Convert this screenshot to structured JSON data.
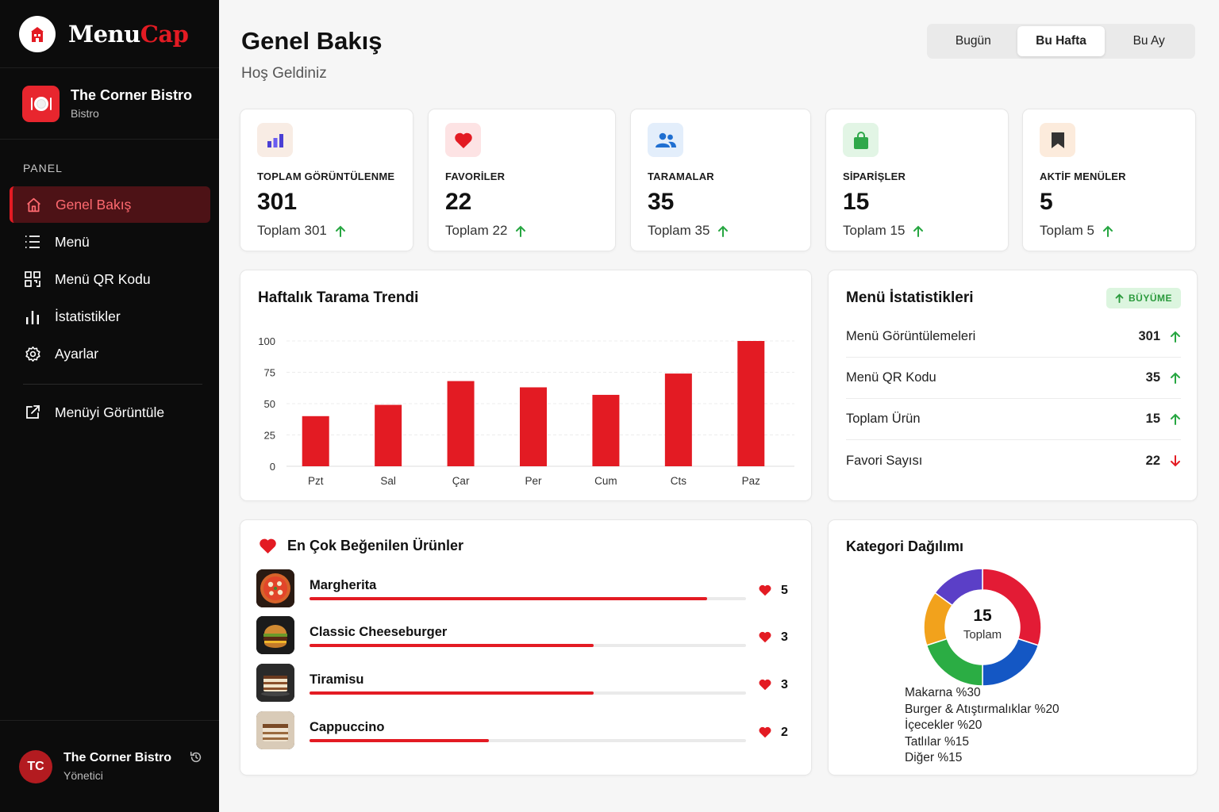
{
  "brand": {
    "logo_main": "Menu",
    "logo_accent": "Cap"
  },
  "business": {
    "name": "The Corner Bistro",
    "type": "Bistro"
  },
  "sidebar": {
    "section_label": "PANEL",
    "items": [
      {
        "label": "Genel Bakış",
        "icon": "home-icon",
        "active": true
      },
      {
        "label": "Menü",
        "icon": "list-icon"
      },
      {
        "label": "Menü QR Kodu",
        "icon": "qr-code-icon"
      },
      {
        "label": "İstatistikler",
        "icon": "bar-chart-icon"
      },
      {
        "label": "Ayarlar",
        "icon": "gear-icon"
      }
    ],
    "external": {
      "label": "Menüyi Görüntüle",
      "icon": "external-link-icon"
    }
  },
  "user": {
    "initials": "TC",
    "name": "The Corner Bistro",
    "role": "Yönetici"
  },
  "header": {
    "title": "Genel Bakış",
    "subtitle": "Hoş Geldiniz"
  },
  "period": {
    "options": [
      "Bugün",
      "Bu Hafta",
      "Bu Ay"
    ],
    "selected": "Bu Hafta"
  },
  "stats": [
    {
      "label": "TOPLAM GÖRÜNTÜLENME",
      "value": "301",
      "total": "Toplam 301",
      "icon": "bar-chart-icon",
      "color": "#4a3fd4",
      "bg": "#f8ece4"
    },
    {
      "label": "FAVORİLER",
      "value": "22",
      "total": "Toplam 22",
      "icon": "heart-icon",
      "color": "#e31b23",
      "bg": "#fde3e4"
    },
    {
      "label": "TARAMALAR",
      "value": "35",
      "total": "Toplam 35",
      "icon": "users-icon",
      "color": "#1f6fd1",
      "bg": "#e3eefb"
    },
    {
      "label": "SİPARİŞLER",
      "value": "15",
      "total": "Toplam 15",
      "icon": "shopping-bag-icon",
      "color": "#2fa84a",
      "bg": "#e2f5e5"
    },
    {
      "label": "AKTİF MENÜLER",
      "value": "5",
      "total": "Toplam 5",
      "icon": "bookmark-icon",
      "color": "#333333",
      "bg": "#fcebdc"
    }
  ],
  "weekly": {
    "title": "Haftalık Tarama Trendi",
    "chart_data": {
      "type": "bar",
      "categories": [
        "Pzt",
        "Sal",
        "Çar",
        "Per",
        "Cum",
        "Cts",
        "Paz"
      ],
      "values": [
        40,
        49,
        68,
        63,
        57,
        74,
        100
      ],
      "ylim": [
        0,
        100
      ],
      "yticks": [
        0,
        25,
        50,
        75,
        100
      ],
      "grid": true,
      "color": "#e31b23"
    }
  },
  "menu_stats": {
    "title": "Menü İstatistikleri",
    "badge": "BÜYÜME",
    "rows": [
      {
        "label": "Menü Görüntülemeleri",
        "value": "301",
        "trend": "up"
      },
      {
        "label": "Menü QR Kodu",
        "value": "35",
        "trend": "up"
      },
      {
        "label": "Toplam Ürün",
        "value": "15",
        "trend": "up"
      },
      {
        "label": "Favori Sayısı",
        "value": "22",
        "trend": "down"
      }
    ]
  },
  "top_liked": {
    "title": "En Çok Beğenilen Ürünler",
    "items": [
      {
        "name": "Margherita",
        "count": "5",
        "progress": 0.91
      },
      {
        "name": "Classic Cheeseburger",
        "count": "3",
        "progress": 0.65
      },
      {
        "name": "Tiramisu",
        "count": "3",
        "progress": 0.65
      },
      {
        "name": "Cappuccino",
        "count": "2",
        "progress": 0.41
      }
    ]
  },
  "category": {
    "title": "Kategori Dağılımı",
    "center_value": "15",
    "center_label": "Toplam",
    "chart_data": {
      "type": "pie",
      "segments": [
        {
          "label": "Makarna",
          "value": 30,
          "color": "#e31b35"
        },
        {
          "label": "Burger & Atıştırmalıklar",
          "value": 20,
          "color": "#1457c4"
        },
        {
          "label": "İçecekler",
          "value": 20,
          "color": "#2bad44"
        },
        {
          "label": "Tatlılar",
          "value": 15,
          "color": "#f2a21c"
        },
        {
          "label": "Diğer",
          "value": 15,
          "color": "#5b3fc7"
        }
      ]
    },
    "legend": [
      "Makarna %30",
      "Burger & Atıştırmalıklar %20",
      "İçecekler %20",
      "Tatlılar %15",
      "Diğer %15"
    ]
  }
}
